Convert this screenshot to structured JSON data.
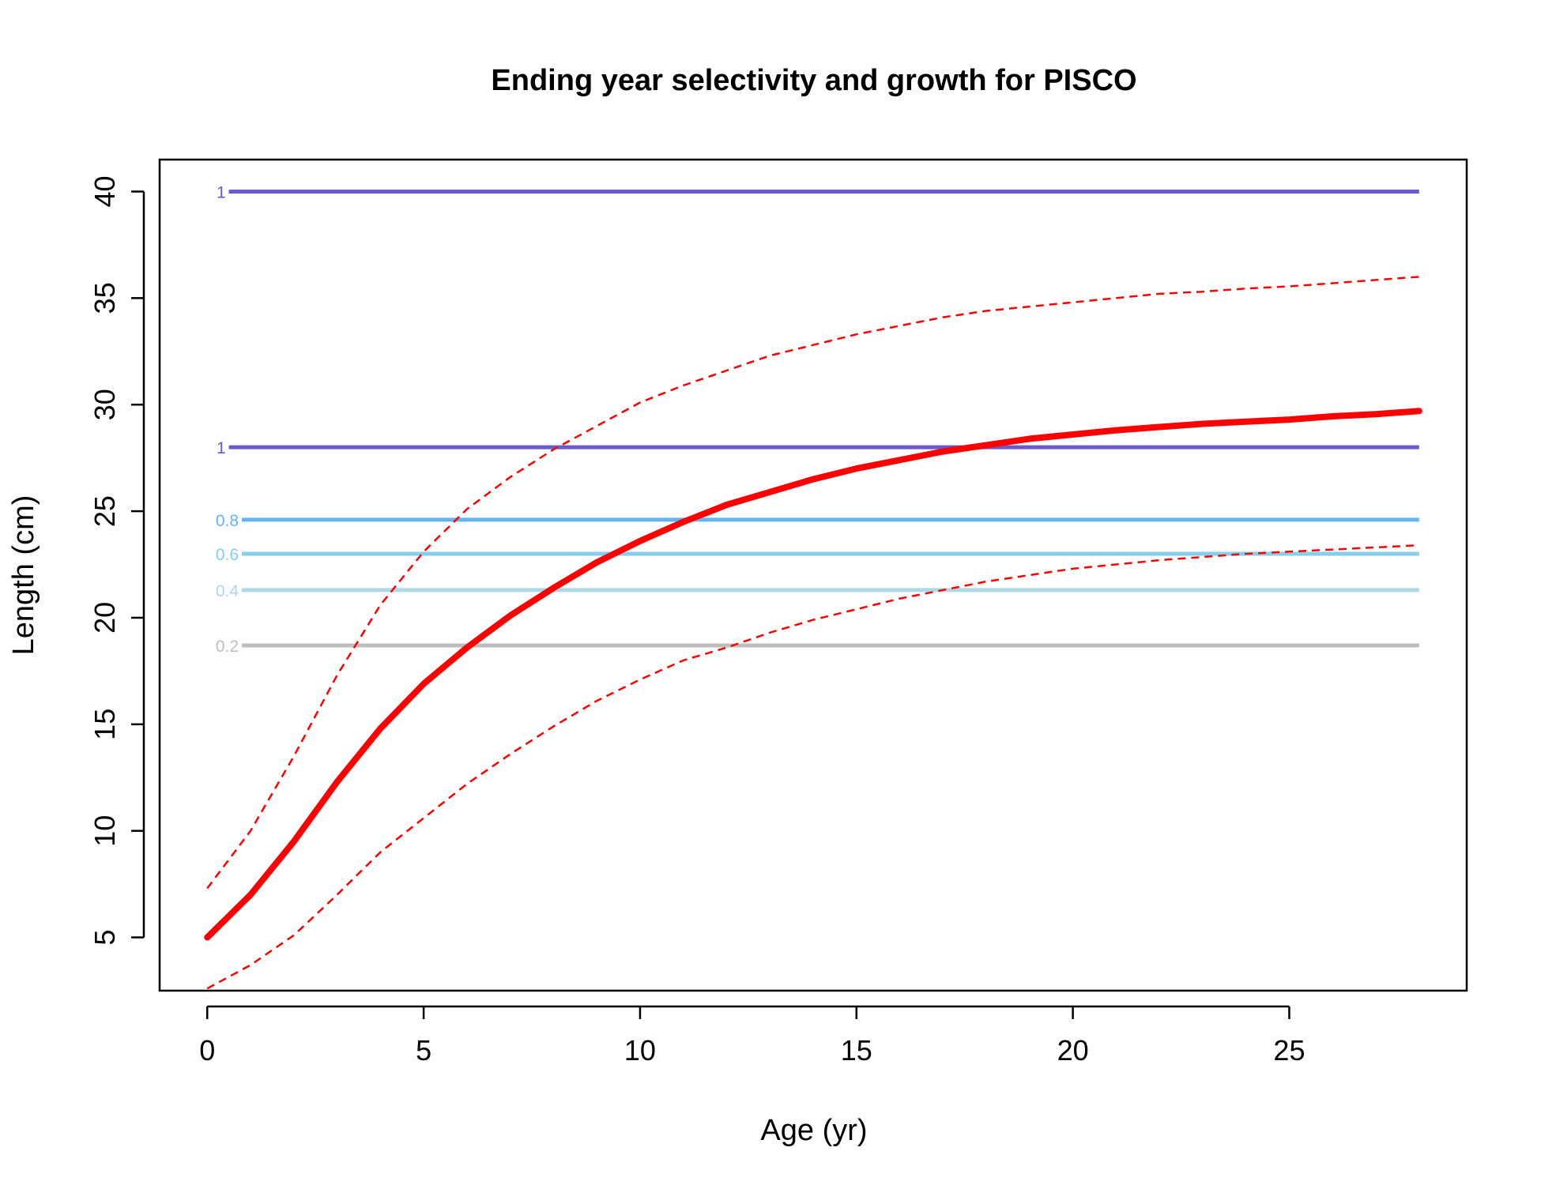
{
  "chart_data": {
    "type": "line",
    "title": "Ending year selectivity and growth for PISCO",
    "xlabel": "Age (yr)",
    "ylabel": "Length (cm)",
    "xlim": [
      -1.1,
      29.1
    ],
    "ylim": [
      2.5,
      41.5
    ],
    "x_ticks": [
      0,
      5,
      10,
      15,
      20,
      25
    ],
    "y_ticks": [
      5,
      10,
      15,
      20,
      25,
      30,
      35,
      40
    ],
    "grid": false,
    "legend": "none",
    "selectivity_lines": [
      {
        "label": "1",
        "length": 40.0,
        "x_start": 0.5,
        "x_end": 28,
        "color": "#6a5acd"
      },
      {
        "label": "1",
        "length": 28.0,
        "x_start": 0.5,
        "x_end": 28,
        "color": "#6a5acd"
      },
      {
        "label": "0.8",
        "length": 24.6,
        "x_start": 0.8,
        "x_end": 28,
        "color": "#63b4f2"
      },
      {
        "label": "0.6",
        "length": 23.0,
        "x_start": 0.8,
        "x_end": 28,
        "color": "#87ceeb"
      },
      {
        "label": "0.4",
        "length": 21.3,
        "x_start": 0.8,
        "x_end": 28,
        "color": "#add8e6"
      },
      {
        "label": "0.2",
        "length": 18.7,
        "x_start": 0.8,
        "x_end": 28,
        "color": "#bebebe"
      }
    ],
    "growth": {
      "color": "#ff0000",
      "x": [
        0,
        1,
        2,
        3,
        4,
        5,
        6,
        7,
        8,
        9,
        10,
        11,
        12,
        13,
        14,
        15,
        16,
        17,
        18,
        19,
        20,
        21,
        22,
        23,
        24,
        25,
        26,
        27,
        28
      ],
      "mean": [
        5.0,
        7.0,
        9.5,
        12.3,
        14.8,
        16.9,
        18.6,
        20.1,
        21.4,
        22.6,
        23.6,
        24.5,
        25.3,
        25.9,
        26.5,
        27.0,
        27.4,
        27.8,
        28.1,
        28.4,
        28.6,
        28.8,
        28.95,
        29.1,
        29.2,
        29.3,
        29.45,
        29.55,
        29.7
      ],
      "upper": [
        7.3,
        10.0,
        13.5,
        17.3,
        20.6,
        23.1,
        25.1,
        26.6,
        27.9,
        29.0,
        30.1,
        30.9,
        31.6,
        32.3,
        32.8,
        33.3,
        33.7,
        34.1,
        34.4,
        34.6,
        34.8,
        35.0,
        35.2,
        35.3,
        35.45,
        35.55,
        35.7,
        35.85,
        36.0
      ],
      "lower": [
        2.6,
        3.7,
        5.1,
        7.0,
        9.0,
        10.6,
        12.2,
        13.6,
        14.9,
        16.1,
        17.1,
        18.0,
        18.6,
        19.3,
        19.9,
        20.4,
        20.9,
        21.3,
        21.7,
        22.0,
        22.3,
        22.5,
        22.7,
        22.85,
        23.0,
        23.1,
        23.2,
        23.3,
        23.4
      ]
    }
  }
}
